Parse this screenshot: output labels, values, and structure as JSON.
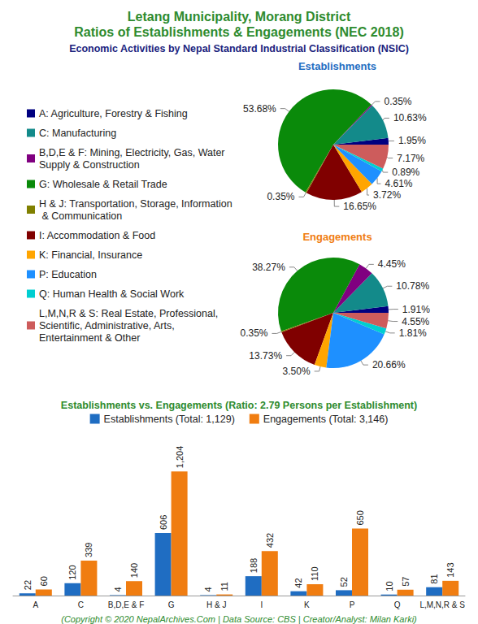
{
  "title": "Letang Municipality, Morang District\nRatios of Establishments & Engagements (NEC 2018)",
  "subtitle": "Economic Activities by Nepal Standard Industrial Classification (NSIC)",
  "footer": "(Copyright © 2020 NepalArchives.Com | Data Source: CBS | Creator/Analyst: Milan Karki)",
  "chart_data": [
    {
      "type": "pie",
      "title": "Establishments",
      "categories": [
        "A: Agriculture, Forestry & Fishing",
        "C: Manufacturing",
        "B,D,E & F: Mining, Electricity, Gas, Water Supply & Construction",
        "G: Wholesale & Retail Trade",
        "H & J: Transportation, Storage, Information & Communication",
        "I: Accommodation & Food",
        "K: Financial, Insurance",
        "P: Education",
        "Q: Human Health & Social Work",
        "L,M,N,R & S: Real Estate, Professional, Scientific, Administrative, Arts, Entertainment & Other"
      ],
      "values": [
        1.95,
        10.63,
        0.35,
        53.68,
        0.35,
        16.65,
        3.72,
        4.61,
        0.89,
        7.17
      ],
      "value_labels": [
        "1.95%",
        "10.63%",
        "0.35%",
        "53.68%",
        "0.35%",
        "16.65%",
        "3.72%",
        "4.61%",
        "0.89%",
        "7.17%"
      ],
      "colors": [
        "#000080",
        "#138a8a",
        "#800080",
        "#0a8a0a",
        "#808000",
        "#800000",
        "#ffa500",
        "#1e90ff",
        "#00ced1",
        "#cd5c5c"
      ],
      "legend": "left",
      "data_labels": true
    },
    {
      "type": "pie",
      "title": "Engagements",
      "categories": [
        "A: Agriculture, Forestry & Fishing",
        "C: Manufacturing",
        "B,D,E & F: Mining, Electricity, Gas, Water Supply & Construction",
        "G: Wholesale & Retail Trade",
        "H & J: Transportation, Storage, Information & Communication",
        "I: Accommodation & Food",
        "K: Financial, Insurance",
        "P: Education",
        "Q: Human Health & Social Work",
        "L,M,N,R & S: Real Estate, Professional, Scientific, Administrative, Arts, Entertainment & Other"
      ],
      "values": [
        1.91,
        10.78,
        4.45,
        38.27,
        0.35,
        13.73,
        3.5,
        20.66,
        1.81,
        4.55
      ],
      "value_labels": [
        "1.91%",
        "10.78%",
        "4.45%",
        "38.27%",
        "0.35%",
        "13.73%",
        "3.50%",
        "20.66%",
        "1.81%",
        "4.55%"
      ],
      "colors": [
        "#000080",
        "#138a8a",
        "#800080",
        "#0a8a0a",
        "#808000",
        "#800000",
        "#ffa500",
        "#1e90ff",
        "#00ced1",
        "#cd5c5c"
      ],
      "legend": "left",
      "data_labels": true
    },
    {
      "type": "bar",
      "title": "Establishments vs. Engagements (Ratio: 2.79 Persons per Establishment)",
      "categories": [
        "A",
        "C",
        "B,D,E & F",
        "G",
        "H & J",
        "I",
        "K",
        "P",
        "Q",
        "L,M,N,R & S"
      ],
      "series": [
        {
          "name": "Establishments (Total: 1,129)",
          "color": "#1f6dc2",
          "values": [
            22,
            120,
            4,
            606,
            4,
            188,
            42,
            52,
            10,
            81
          ]
        },
        {
          "name": "Engagements (Total: 3,146)",
          "color": "#f07d11",
          "values": [
            60,
            339,
            140,
            1204,
            11,
            432,
            110,
            650,
            57,
            143
          ],
          "value_labels": [
            "60",
            "339",
            "140",
            "1,204",
            "11",
            "432",
            "110",
            "650",
            "57",
            "143"
          ]
        }
      ],
      "ylim": [
        0,
        1300
      ],
      "data_labels": true,
      "tick_labels": "x",
      "legend": "top",
      "grid": false
    }
  ]
}
